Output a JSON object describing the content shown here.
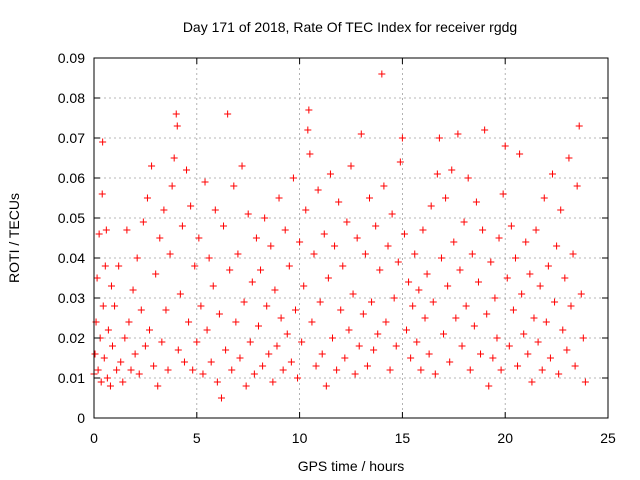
{
  "chart_data": {
    "type": "scatter",
    "title": "Day 171 of 2018, Rate Of TEC Index for receiver rgdg",
    "xlabel": "GPS time / hours",
    "ylabel": "ROTI / TECUs",
    "xlim": [
      0,
      25
    ],
    "ylim": [
      0,
      0.09
    ],
    "xticks": [
      0,
      5,
      10,
      15,
      20,
      25
    ],
    "xtick_labels": [
      "0",
      "5",
      "10",
      "15",
      "20",
      "25"
    ],
    "yticks": [
      0,
      0.01,
      0.02,
      0.03,
      0.04,
      0.05,
      0.06,
      0.07,
      0.08,
      0.09
    ],
    "ytick_labels": [
      "0",
      "0.01",
      "0.02",
      "0.03",
      "0.04",
      "0.05",
      "0.06",
      "0.07",
      "0.08",
      "0.09"
    ],
    "grid": true,
    "marker": "plus",
    "color": "#ff0000",
    "series": [
      {
        "points": [
          [
            0.0,
            0.011
          ],
          [
            0.05,
            0.016
          ],
          [
            0.1,
            0.024
          ],
          [
            0.15,
            0.035
          ],
          [
            0.2,
            0.012
          ],
          [
            0.25,
            0.046
          ],
          [
            0.3,
            0.02
          ],
          [
            0.35,
            0.009
          ],
          [
            0.4,
            0.056
          ],
          [
            0.42,
            0.069
          ],
          [
            0.45,
            0.028
          ],
          [
            0.5,
            0.015
          ],
          [
            0.55,
            0.038
          ],
          [
            0.6,
            0.047
          ],
          [
            0.65,
            0.01
          ],
          [
            0.7,
            0.022
          ],
          [
            0.8,
            0.008
          ],
          [
            0.85,
            0.033
          ],
          [
            0.9,
            0.018
          ],
          [
            1.0,
            0.028
          ],
          [
            1.1,
            0.012
          ],
          [
            1.2,
            0.038
          ],
          [
            1.3,
            0.014
          ],
          [
            1.4,
            0.009
          ],
          [
            1.5,
            0.02
          ],
          [
            1.6,
            0.047
          ],
          [
            1.7,
            0.024
          ],
          [
            1.8,
            0.012
          ],
          [
            1.9,
            0.032
          ],
          [
            2.0,
            0.016
          ],
          [
            2.1,
            0.04
          ],
          [
            2.2,
            0.011
          ],
          [
            2.3,
            0.027
          ],
          [
            2.4,
            0.049
          ],
          [
            2.5,
            0.018
          ],
          [
            2.6,
            0.055
          ],
          [
            2.7,
            0.022
          ],
          [
            2.8,
            0.063
          ],
          [
            2.9,
            0.013
          ],
          [
            3.0,
            0.036
          ],
          [
            3.1,
            0.008
          ],
          [
            3.2,
            0.045
          ],
          [
            3.3,
            0.019
          ],
          [
            3.4,
            0.052
          ],
          [
            3.5,
            0.027
          ],
          [
            3.6,
            0.012
          ],
          [
            3.7,
            0.041
          ],
          [
            3.8,
            0.058
          ],
          [
            3.9,
            0.065
          ],
          [
            4.0,
            0.076
          ],
          [
            4.05,
            0.073
          ],
          [
            4.1,
            0.017
          ],
          [
            4.2,
            0.031
          ],
          [
            4.3,
            0.048
          ],
          [
            4.4,
            0.014
          ],
          [
            4.5,
            0.062
          ],
          [
            4.6,
            0.024
          ],
          [
            4.7,
            0.053
          ],
          [
            4.8,
            0.012
          ],
          [
            4.9,
            0.038
          ],
          [
            5.0,
            0.019
          ],
          [
            5.1,
            0.045
          ],
          [
            5.2,
            0.028
          ],
          [
            5.3,
            0.011
          ],
          [
            5.4,
            0.059
          ],
          [
            5.5,
            0.022
          ],
          [
            5.6,
            0.04
          ],
          [
            5.7,
            0.014
          ],
          [
            5.8,
            0.033
          ],
          [
            5.9,
            0.052
          ],
          [
            6.0,
            0.009
          ],
          [
            6.1,
            0.026
          ],
          [
            6.2,
            0.005
          ],
          [
            6.3,
            0.048
          ],
          [
            6.4,
            0.017
          ],
          [
            6.5,
            0.076
          ],
          [
            6.6,
            0.037
          ],
          [
            6.7,
            0.012
          ],
          [
            6.8,
            0.058
          ],
          [
            6.9,
            0.024
          ],
          [
            7.0,
            0.041
          ],
          [
            7.1,
            0.015
          ],
          [
            7.2,
            0.063
          ],
          [
            7.3,
            0.029
          ],
          [
            7.4,
            0.008
          ],
          [
            7.5,
            0.051
          ],
          [
            7.6,
            0.019
          ],
          [
            7.7,
            0.034
          ],
          [
            7.8,
            0.011
          ],
          [
            7.9,
            0.045
          ],
          [
            8.0,
            0.023
          ],
          [
            8.1,
            0.037
          ],
          [
            8.2,
            0.013
          ],
          [
            8.3,
            0.05
          ],
          [
            8.4,
            0.028
          ],
          [
            8.5,
            0.016
          ],
          [
            8.6,
            0.043
          ],
          [
            8.7,
            0.009
          ],
          [
            8.8,
            0.032
          ],
          [
            8.9,
            0.018
          ],
          [
            9.0,
            0.055
          ],
          [
            9.1,
            0.025
          ],
          [
            9.2,
            0.012
          ],
          [
            9.3,
            0.047
          ],
          [
            9.4,
            0.021
          ],
          [
            9.5,
            0.038
          ],
          [
            9.6,
            0.014
          ],
          [
            9.7,
            0.06
          ],
          [
            9.8,
            0.027
          ],
          [
            9.9,
            0.01
          ],
          [
            10.0,
            0.044
          ],
          [
            10.1,
            0.019
          ],
          [
            10.2,
            0.033
          ],
          [
            10.3,
            0.052
          ],
          [
            10.4,
            0.072
          ],
          [
            10.45,
            0.077
          ],
          [
            10.5,
            0.066
          ],
          [
            10.6,
            0.024
          ],
          [
            10.7,
            0.041
          ],
          [
            10.8,
            0.013
          ],
          [
            10.9,
            0.057
          ],
          [
            11.0,
            0.029
          ],
          [
            11.1,
            0.016
          ],
          [
            11.2,
            0.046
          ],
          [
            11.3,
            0.008
          ],
          [
            11.4,
            0.035
          ],
          [
            11.5,
            0.061
          ],
          [
            11.6,
            0.02
          ],
          [
            11.7,
            0.043
          ],
          [
            11.8,
            0.012
          ],
          [
            11.9,
            0.054
          ],
          [
            12.0,
            0.027
          ],
          [
            12.1,
            0.038
          ],
          [
            12.2,
            0.015
          ],
          [
            12.3,
            0.049
          ],
          [
            12.4,
            0.022
          ],
          [
            12.5,
            0.063
          ],
          [
            12.6,
            0.031
          ],
          [
            12.7,
            0.011
          ],
          [
            12.8,
            0.045
          ],
          [
            12.9,
            0.018
          ],
          [
            13.0,
            0.071
          ],
          [
            13.1,
            0.026
          ],
          [
            13.2,
            0.041
          ],
          [
            13.3,
            0.013
          ],
          [
            13.4,
            0.055
          ],
          [
            13.5,
            0.029
          ],
          [
            13.6,
            0.017
          ],
          [
            13.7,
            0.048
          ],
          [
            13.8,
            0.021
          ],
          [
            13.9,
            0.037
          ],
          [
            14.0,
            0.086
          ],
          [
            14.1,
            0.058
          ],
          [
            14.2,
            0.024
          ],
          [
            14.3,
            0.043
          ],
          [
            14.4,
            0.012
          ],
          [
            14.5,
            0.051
          ],
          [
            14.6,
            0.03
          ],
          [
            14.7,
            0.018
          ],
          [
            14.8,
            0.039
          ],
          [
            14.9,
            0.064
          ],
          [
            15.0,
            0.07
          ],
          [
            15.1,
            0.046
          ],
          [
            15.2,
            0.022
          ],
          [
            15.3,
            0.034
          ],
          [
            15.4,
            0.015
          ],
          [
            15.5,
            0.028
          ],
          [
            15.6,
            0.041
          ],
          [
            15.7,
            0.019
          ],
          [
            15.8,
            0.032
          ],
          [
            15.9,
            0.012
          ],
          [
            16.0,
            0.047
          ],
          [
            16.1,
            0.025
          ],
          [
            16.2,
            0.036
          ],
          [
            16.3,
            0.016
          ],
          [
            16.4,
            0.053
          ],
          [
            16.5,
            0.029
          ],
          [
            16.6,
            0.011
          ],
          [
            16.7,
            0.061
          ],
          [
            16.8,
            0.07
          ],
          [
            16.9,
            0.04
          ],
          [
            17.0,
            0.021
          ],
          [
            17.1,
            0.055
          ],
          [
            17.2,
            0.033
          ],
          [
            17.3,
            0.014
          ],
          [
            17.4,
            0.062
          ],
          [
            17.5,
            0.044
          ],
          [
            17.6,
            0.025
          ],
          [
            17.7,
            0.071
          ],
          [
            17.8,
            0.037
          ],
          [
            17.9,
            0.018
          ],
          [
            18.0,
            0.049
          ],
          [
            18.1,
            0.028
          ],
          [
            18.2,
            0.06
          ],
          [
            18.3,
            0.012
          ],
          [
            18.4,
            0.041
          ],
          [
            18.5,
            0.023
          ],
          [
            18.6,
            0.054
          ],
          [
            18.7,
            0.034
          ],
          [
            18.8,
            0.016
          ],
          [
            18.9,
            0.047
          ],
          [
            19.0,
            0.072
          ],
          [
            19.1,
            0.026
          ],
          [
            19.2,
            0.008
          ],
          [
            19.3,
            0.039
          ],
          [
            19.4,
            0.015
          ],
          [
            19.5,
            0.03
          ],
          [
            19.6,
            0.02
          ],
          [
            19.7,
            0.045
          ],
          [
            19.8,
            0.012
          ],
          [
            19.9,
            0.056
          ],
          [
            20.0,
            0.068
          ],
          [
            20.1,
            0.035
          ],
          [
            20.2,
            0.018
          ],
          [
            20.3,
            0.048
          ],
          [
            20.4,
            0.027
          ],
          [
            20.5,
            0.04
          ],
          [
            20.6,
            0.013
          ],
          [
            20.7,
            0.066
          ],
          [
            20.8,
            0.031
          ],
          [
            20.9,
            0.021
          ],
          [
            21.0,
            0.044
          ],
          [
            21.1,
            0.016
          ],
          [
            21.2,
            0.036
          ],
          [
            21.3,
            0.009
          ],
          [
            21.4,
            0.025
          ],
          [
            21.5,
            0.047
          ],
          [
            21.6,
            0.019
          ],
          [
            21.7,
            0.033
          ],
          [
            21.8,
            0.012
          ],
          [
            21.9,
            0.055
          ],
          [
            22.0,
            0.024
          ],
          [
            22.1,
            0.038
          ],
          [
            22.2,
            0.015
          ],
          [
            22.3,
            0.061
          ],
          [
            22.4,
            0.029
          ],
          [
            22.5,
            0.043
          ],
          [
            22.6,
            0.011
          ],
          [
            22.7,
            0.052
          ],
          [
            22.8,
            0.022
          ],
          [
            22.9,
            0.035
          ],
          [
            23.0,
            0.017
          ],
          [
            23.1,
            0.065
          ],
          [
            23.2,
            0.028
          ],
          [
            23.3,
            0.041
          ],
          [
            23.4,
            0.013
          ],
          [
            23.5,
            0.058
          ],
          [
            23.6,
            0.073
          ],
          [
            23.7,
            0.031
          ],
          [
            23.8,
            0.02
          ],
          [
            23.9,
            0.009
          ]
        ]
      }
    ]
  }
}
